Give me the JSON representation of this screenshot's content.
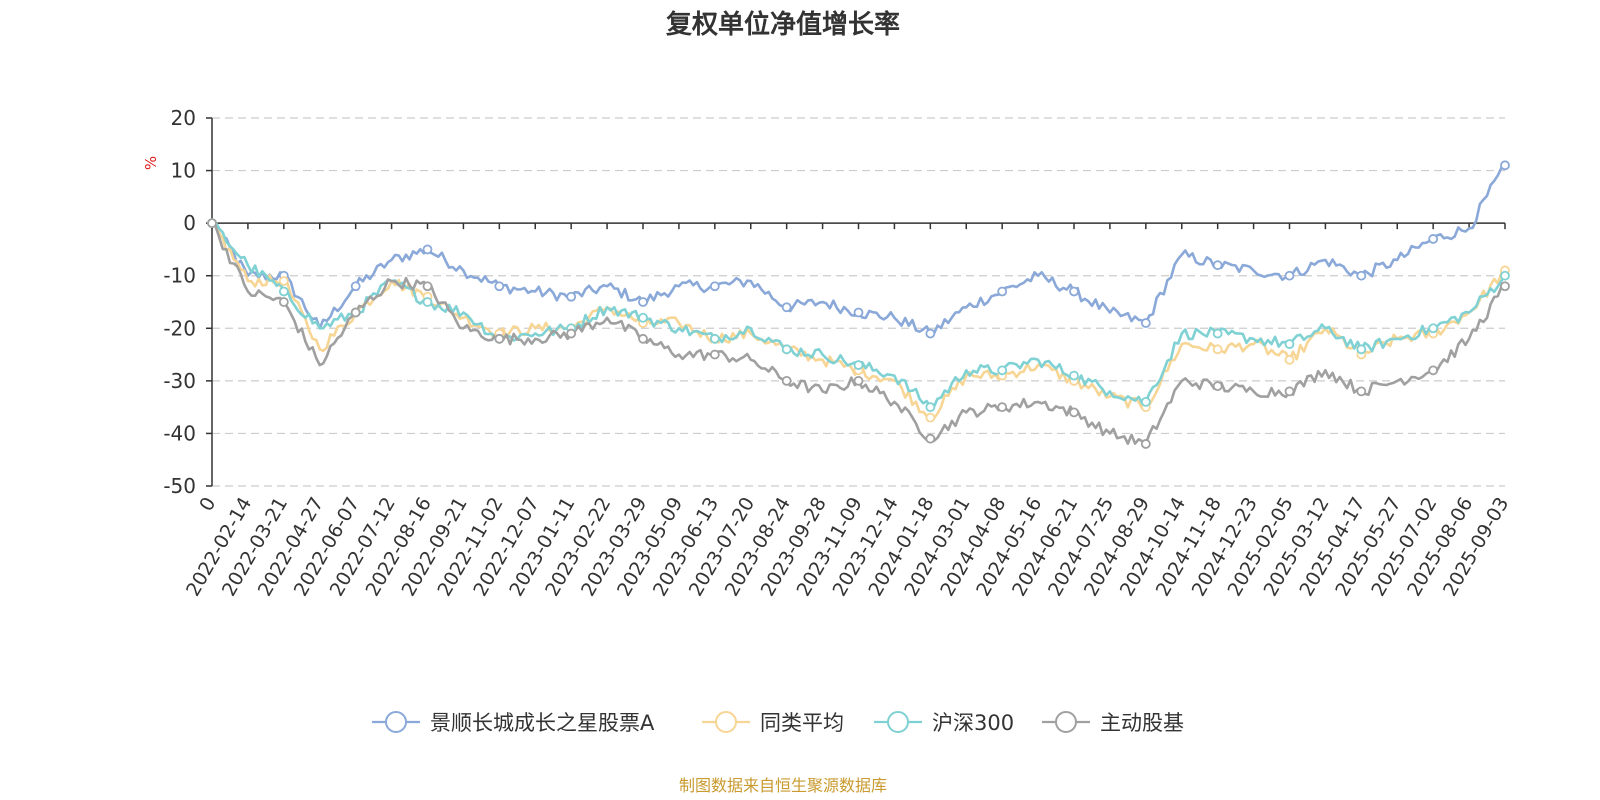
{
  "chart_data": {
    "type": "line",
    "title": "复权单位净值增长率",
    "ylabel": "%",
    "ylim": [
      -50,
      20
    ],
    "yticks": [
      20,
      10,
      0,
      -10,
      -20,
      -30,
      -40,
      -50
    ],
    "grid": true,
    "legend_position": "bottom",
    "source": "制图数据来自恒生聚源数据库",
    "x_tick_labels": [
      "0",
      "2022-02-14",
      "2022-03-21",
      "2022-04-27",
      "2022-06-07",
      "2022-07-12",
      "2022-08-16",
      "2022-09-21",
      "2022-11-02",
      "2022-12-07",
      "2023-01-11",
      "2023-02-22",
      "2023-03-29",
      "2023-05-09",
      "2023-06-13",
      "2023-07-20",
      "2023-08-24",
      "2023-09-28",
      "2023-11-09",
      "2023-12-14",
      "2024-01-18",
      "2024-03-01",
      "2024-04-08",
      "2024-05-16",
      "2024-06-21",
      "2024-07-25",
      "2024-08-29",
      "2024-10-14",
      "2024-11-18",
      "2024-12-23",
      "2025-02-05",
      "2025-03-12",
      "2025-04-17",
      "2025-05-27",
      "2025-07-02",
      "2025-08-06",
      "2025-09-03"
    ],
    "series": [
      {
        "name": "景顺长城成长之星股票A",
        "color": "#8aa8d8",
        "values": [
          0,
          -10,
          -10,
          -20,
          -12,
          -7,
          -5,
          -9,
          -12,
          -13,
          -14,
          -12,
          -15,
          -12,
          -12,
          -11,
          -16,
          -15,
          -17,
          -18,
          -21,
          -16,
          -13,
          -10,
          -13,
          -17,
          -19,
          -6,
          -8,
          -9,
          -10,
          -7,
          -10,
          -7,
          -3,
          -1,
          11
        ]
      },
      {
        "name": "同类平均",
        "color": "#f7d594",
        "values": [
          0,
          -11,
          -11,
          -24,
          -17,
          -11,
          -14,
          -18,
          -21,
          -20,
          -20,
          -16,
          -19,
          -19,
          -22,
          -21,
          -24,
          -26,
          -28,
          -30,
          -37,
          -29,
          -29,
          -27,
          -30,
          -33,
          -35,
          -23,
          -24,
          -23,
          -26,
          -20,
          -25,
          -22,
          -21,
          -17,
          -9
        ]
      },
      {
        "name": "沪深300",
        "color": "#7fd1d3",
        "values": [
          0,
          -8,
          -13,
          -20,
          -17,
          -11,
          -15,
          -17,
          -22,
          -21,
          -20,
          -16,
          -18,
          -20,
          -22,
          -20,
          -24,
          -25,
          -27,
          -29,
          -35,
          -28,
          -28,
          -26,
          -29,
          -32,
          -34,
          -21,
          -21,
          -22,
          -23,
          -20,
          -24,
          -22,
          -20,
          -17,
          -10
        ]
      },
      {
        "name": "主动股基",
        "color": "#a0a0a0",
        "values": [
          0,
          -13,
          -15,
          -27,
          -17,
          -11,
          -12,
          -20,
          -22,
          -22,
          -21,
          -18,
          -22,
          -25,
          -25,
          -26,
          -30,
          -32,
          -30,
          -34,
          -41,
          -36,
          -35,
          -34,
          -36,
          -40,
          -42,
          -30,
          -31,
          -32,
          -32,
          -28,
          -32,
          -30,
          -28,
          -22,
          -12
        ]
      }
    ]
  }
}
